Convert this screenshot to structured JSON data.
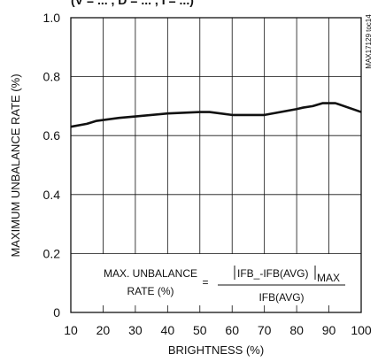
{
  "header_fragment": "(V  = ... , D    = ... , I    = ...)",
  "side_code": "MAX17129 toc14",
  "chart_data": {
    "type": "line",
    "title": "",
    "xlabel": "BRIGHTNESS (%)",
    "ylabel": "MAXIMUM UNBALANCE RATE (%)",
    "xlim": [
      10,
      100
    ],
    "ylim": [
      0,
      1.0
    ],
    "x_ticks": [
      "10",
      "20",
      "30",
      "40",
      "50",
      "60",
      "70",
      "80",
      "90",
      "100"
    ],
    "y_ticks": [
      "0",
      "0.2",
      "0.4",
      "0.6",
      "0.8",
      "1.0"
    ],
    "grid": true,
    "series": [
      {
        "x": [
          10,
          15,
          18,
          25,
          30,
          40,
          50,
          53,
          60,
          70,
          80,
          82,
          85,
          88,
          92,
          100
        ],
        "y": [
          0.63,
          0.64,
          0.65,
          0.66,
          0.665,
          0.675,
          0.68,
          0.68,
          0.67,
          0.67,
          0.69,
          0.695,
          0.7,
          0.71,
          0.71,
          0.68
        ]
      }
    ],
    "annotation": {
      "lhs_line1": "MAX. UNBALANCE",
      "lhs_line2": "RATE (%)",
      "equals": "=",
      "numerator_main": "IFB_-IFB(AVG)",
      "numerator_sub": "MAX",
      "denominator": "IFB(AVG)"
    }
  }
}
